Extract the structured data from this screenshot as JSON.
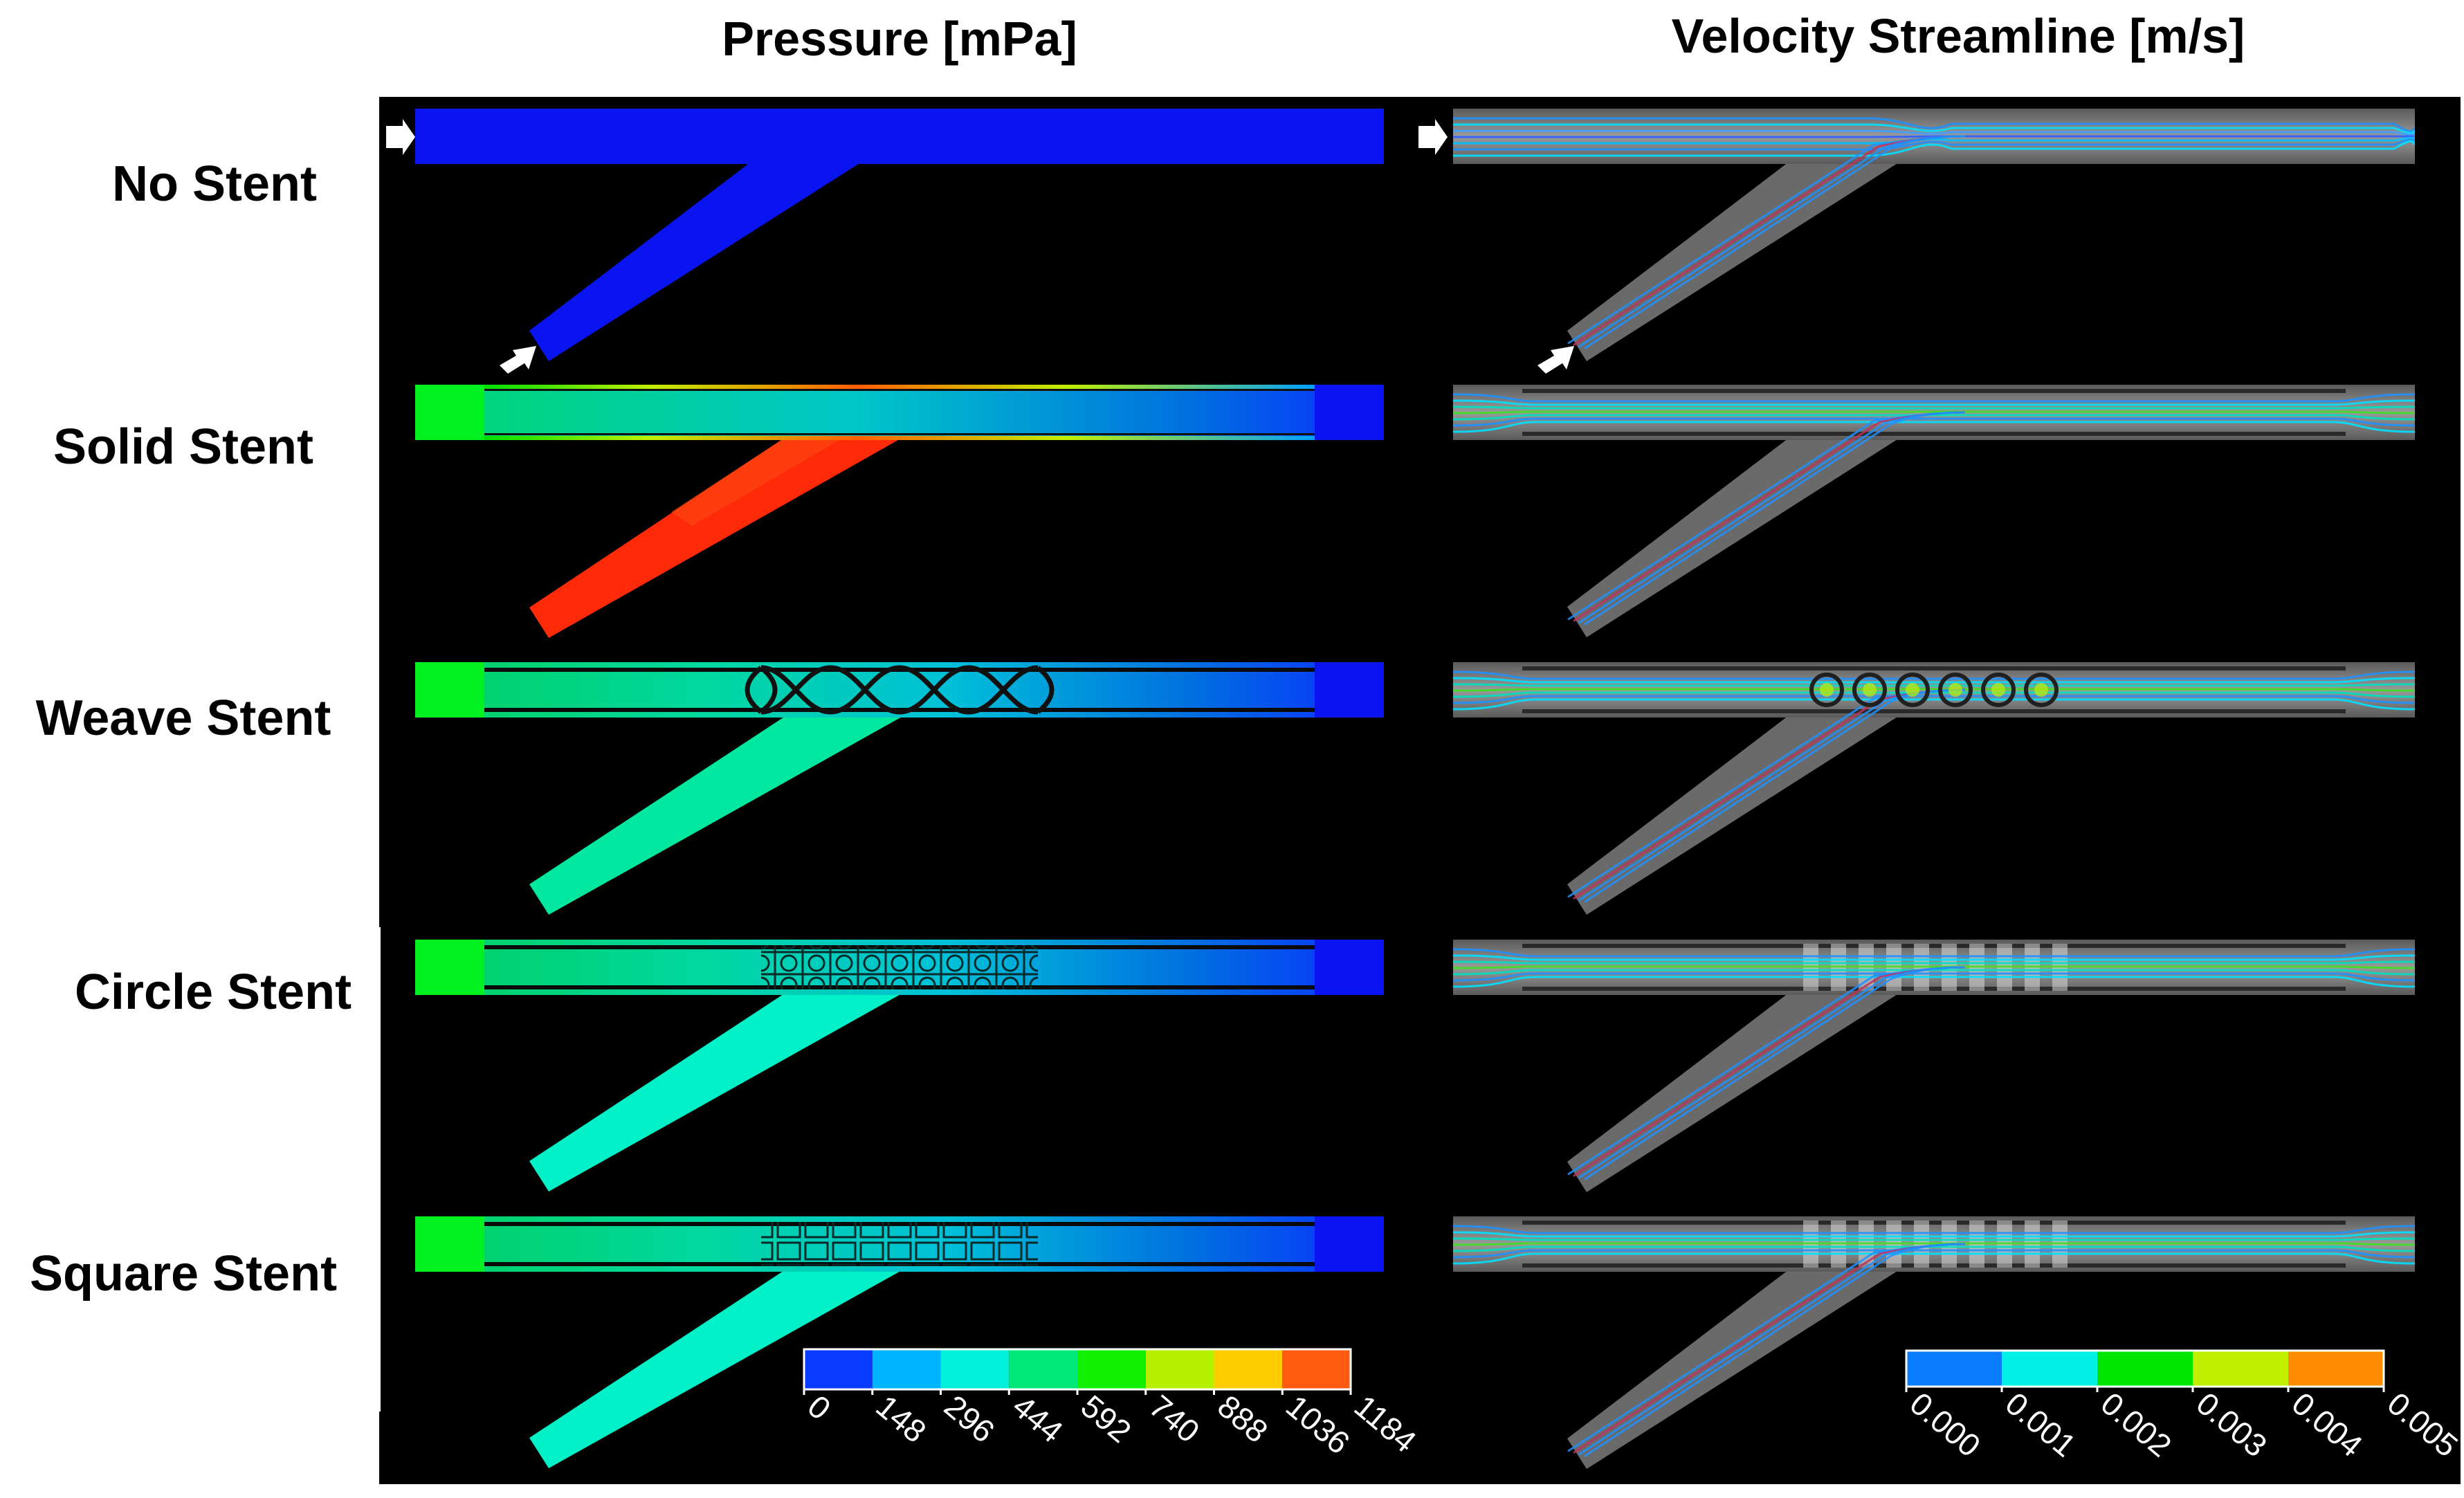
{
  "figure": {
    "pressure_title": "Pressure [mPa]",
    "velocity_title": "Velocity Streamline [m/s]",
    "rows": [
      {
        "label": "No Stent",
        "stent": "none",
        "inlet_arrows": true
      },
      {
        "label": "Solid Stent",
        "stent": "solid",
        "inlet_arrows": false
      },
      {
        "label": "Weave Stent",
        "stent": "weave",
        "inlet_arrows": false
      },
      {
        "label": "Circle Stent",
        "stent": "circle",
        "inlet_arrows": false
      },
      {
        "label": "Square Stent",
        "stent": "square",
        "inlet_arrows": false
      }
    ]
  },
  "pressure_colorbar": {
    "unit": "mPa",
    "ticks": [
      "0",
      "148",
      "296",
      "444",
      "592",
      "740",
      "888",
      "1036",
      "1184"
    ],
    "colors": [
      "#0a3cff",
      "#00b4ff",
      "#00f0dc",
      "#00e87a",
      "#10f000",
      "#b4f000",
      "#ffcc00",
      "#ff5a10"
    ]
  },
  "velocity_colorbar": {
    "unit": "m/s",
    "ticks": [
      "0.000",
      "0.001",
      "0.002",
      "0.003",
      "0.004",
      "0.005"
    ],
    "colors": [
      "#0a7cff",
      "#00f0e6",
      "#00e600",
      "#c0f000",
      "#ff8c00"
    ]
  },
  "colors": {
    "background": "#000000",
    "vessel_gray": "#7a7a7a",
    "arrow": "#ffffff"
  }
}
